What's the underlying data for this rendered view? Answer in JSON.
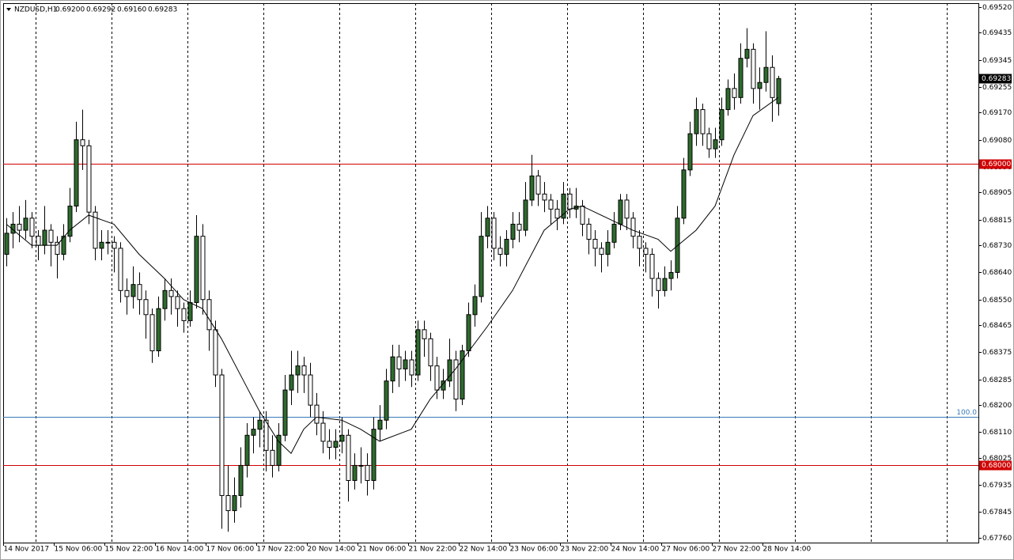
{
  "chart_data": {
    "type": "candlestick",
    "symbol": "NZDUSD,H1",
    "ohlc_header": [
      "0.69200",
      "0.69292",
      "0.69160",
      "0.69283"
    ],
    "bull_color": "#2e6b2e",
    "bear_color": "#ffffff",
    "ma_color": "#000000",
    "ylim": [
      0.67744,
      0.69533
    ],
    "yticks": [
      {
        "value": 0.6952,
        "label": "0.69520"
      },
      {
        "value": 0.69435,
        "label": "0.69435"
      },
      {
        "value": 0.69345,
        "label": "0.69345"
      },
      {
        "value": 0.69255,
        "label": "0.69255"
      },
      {
        "value": 0.6917,
        "label": "0.69170"
      },
      {
        "value": 0.6908,
        "label": "0.69080"
      },
      {
        "value": 0.6899,
        "label": "0.68990"
      },
      {
        "value": 0.68905,
        "label": "0.68905"
      },
      {
        "value": 0.68815,
        "label": "0.68815"
      },
      {
        "value": 0.6873,
        "label": "0.68730"
      },
      {
        "value": 0.6864,
        "label": "0.68640"
      },
      {
        "value": 0.6855,
        "label": "0.68550"
      },
      {
        "value": 0.68465,
        "label": "0.68465"
      },
      {
        "value": 0.68375,
        "label": "0.68375"
      },
      {
        "value": 0.68285,
        "label": "0.68285"
      },
      {
        "value": 0.682,
        "label": "0.68200"
      },
      {
        "value": 0.6811,
        "label": "0.68110"
      },
      {
        "value": 0.68025,
        "label": "0.68025"
      },
      {
        "value": 0.67935,
        "label": "0.67935"
      },
      {
        "value": 0.67845,
        "label": "0.67845"
      },
      {
        "value": 0.6776,
        "label": "0.67760"
      }
    ],
    "xticks": [
      {
        "value": -0.5,
        "label": "14 Nov 2017"
      },
      {
        "value": 7.5,
        "label": "15 Nov 06:00"
      },
      {
        "value": 15.5,
        "label": "15 Nov 22:00"
      },
      {
        "value": 23.5,
        "label": "16 Nov 14:00"
      },
      {
        "value": 31.5,
        "label": "17 Nov 06:00"
      },
      {
        "value": 39.5,
        "label": "17 Nov 22:00"
      },
      {
        "value": 47.5,
        "label": "20 Nov 14:00"
      },
      {
        "value": 55.5,
        "label": "21 Nov 06:00"
      },
      {
        "value": 63.5,
        "label": "21 Nov 22:00"
      },
      {
        "value": 71.5,
        "label": "22 Nov 14:00"
      },
      {
        "value": 79.5,
        "label": "23 Nov 06:00"
      },
      {
        "value": 87.5,
        "label": "23 Nov 22:00"
      },
      {
        "value": 95.5,
        "label": "24 Nov 14:00"
      },
      {
        "value": 103.5,
        "label": "27 Nov 06:00"
      },
      {
        "value": 111.5,
        "label": "27 Nov 22:00"
      },
      {
        "value": 119.5,
        "label": "28 Nov 14:00"
      }
    ],
    "levels": [
      {
        "value": 0.69,
        "label": "0.69000",
        "color": "#d00000"
      },
      {
        "value": 0.68,
        "label": "0.68000",
        "color": "#d00000"
      },
      {
        "value": 0.6816,
        "label": "100.0",
        "color": "#3a7ab8"
      }
    ],
    "last_price": {
      "value": 0.69283,
      "label": "0.69283"
    },
    "candles": [
      [
        0.687,
        0.6882,
        0.6866,
        0.6877
      ],
      [
        0.6877,
        0.6884,
        0.6872,
        0.688
      ],
      [
        0.688,
        0.6886,
        0.6874,
        0.6878
      ],
      [
        0.6878,
        0.6888,
        0.6875,
        0.6882
      ],
      [
        0.6882,
        0.6884,
        0.6872,
        0.6876
      ],
      [
        0.6876,
        0.6878,
        0.6868,
        0.6873
      ],
      [
        0.6873,
        0.6886,
        0.687,
        0.6878
      ],
      [
        0.6878,
        0.688,
        0.6866,
        0.6874
      ],
      [
        0.6874,
        0.6876,
        0.6862,
        0.687
      ],
      [
        0.687,
        0.688,
        0.6868,
        0.6876
      ],
      [
        0.6876,
        0.6892,
        0.6874,
        0.6886
      ],
      [
        0.6886,
        0.6914,
        0.6884,
        0.6908
      ],
      [
        0.6908,
        0.6918,
        0.6898,
        0.6906
      ],
      [
        0.6906,
        0.6908,
        0.688,
        0.6884
      ],
      [
        0.6884,
        0.6886,
        0.6868,
        0.6872
      ],
      [
        0.6872,
        0.6878,
        0.6868,
        0.6874
      ],
      [
        0.6874,
        0.6878,
        0.687,
        0.6874
      ],
      [
        0.6874,
        0.6876,
        0.6864,
        0.6872
      ],
      [
        0.6872,
        0.6874,
        0.6854,
        0.6858
      ],
      [
        0.6858,
        0.6862,
        0.685,
        0.6856
      ],
      [
        0.6856,
        0.6866,
        0.6852,
        0.686
      ],
      [
        0.686,
        0.6864,
        0.685,
        0.6855
      ],
      [
        0.6855,
        0.6858,
        0.6842,
        0.685
      ],
      [
        0.685,
        0.6852,
        0.6834,
        0.6838
      ],
      [
        0.6838,
        0.6856,
        0.6836,
        0.6852
      ],
      [
        0.6852,
        0.6862,
        0.6848,
        0.6858
      ],
      [
        0.6858,
        0.6862,
        0.685,
        0.6856
      ],
      [
        0.6856,
        0.6858,
        0.6846,
        0.6852
      ],
      [
        0.6852,
        0.6854,
        0.6844,
        0.6848
      ],
      [
        0.6848,
        0.6858,
        0.6846,
        0.6854
      ],
      [
        0.6854,
        0.6883,
        0.6852,
        0.6876
      ],
      [
        0.6876,
        0.688,
        0.685,
        0.6855
      ],
      [
        0.6855,
        0.6858,
        0.6838,
        0.6845
      ],
      [
        0.6845,
        0.6848,
        0.6826,
        0.683
      ],
      [
        0.683,
        0.6832,
        0.6779,
        0.679
      ],
      [
        0.679,
        0.68,
        0.6778,
        0.6785
      ],
      [
        0.6785,
        0.6796,
        0.6781,
        0.679
      ],
      [
        0.679,
        0.6806,
        0.6786,
        0.68
      ],
      [
        0.68,
        0.6814,
        0.6796,
        0.681
      ],
      [
        0.681,
        0.6816,
        0.6804,
        0.6812
      ],
      [
        0.6812,
        0.6818,
        0.6806,
        0.6815
      ],
      [
        0.6815,
        0.6818,
        0.6798,
        0.6805
      ],
      [
        0.6805,
        0.681,
        0.6796,
        0.68
      ],
      [
        0.68,
        0.6814,
        0.6798,
        0.681
      ],
      [
        0.681,
        0.683,
        0.6808,
        0.6825
      ],
      [
        0.6825,
        0.6838,
        0.682,
        0.683
      ],
      [
        0.683,
        0.6838,
        0.6824,
        0.6833
      ],
      [
        0.6833,
        0.6836,
        0.6824,
        0.683
      ],
      [
        0.683,
        0.6834,
        0.6816,
        0.682
      ],
      [
        0.682,
        0.6824,
        0.681,
        0.6814
      ],
      [
        0.6814,
        0.6818,
        0.6804,
        0.6808
      ],
      [
        0.6808,
        0.6812,
        0.6802,
        0.6806
      ],
      [
        0.6806,
        0.6812,
        0.6802,
        0.6808
      ],
      [
        0.6808,
        0.6816,
        0.6804,
        0.681
      ],
      [
        0.681,
        0.6812,
        0.6788,
        0.6795
      ],
      [
        0.6795,
        0.6804,
        0.6792,
        0.68
      ],
      [
        0.68,
        0.6806,
        0.6794,
        0.68
      ],
      [
        0.68,
        0.6804,
        0.679,
        0.6795
      ],
      [
        0.6795,
        0.6816,
        0.6792,
        0.6812
      ],
      [
        0.6812,
        0.682,
        0.6808,
        0.6815
      ],
      [
        0.6815,
        0.6832,
        0.6812,
        0.6828
      ],
      [
        0.6828,
        0.684,
        0.6824,
        0.6836
      ],
      [
        0.6836,
        0.684,
        0.6826,
        0.6832
      ],
      [
        0.6832,
        0.6838,
        0.6828,
        0.6835
      ],
      [
        0.6835,
        0.6838,
        0.6826,
        0.683
      ],
      [
        0.683,
        0.6848,
        0.6828,
        0.6845
      ],
      [
        0.6845,
        0.6848,
        0.6836,
        0.6842
      ],
      [
        0.6842,
        0.6844,
        0.6828,
        0.6833
      ],
      [
        0.6833,
        0.6836,
        0.6822,
        0.6825
      ],
      [
        0.6825,
        0.6832,
        0.6822,
        0.6828
      ],
      [
        0.6828,
        0.6842,
        0.6826,
        0.6835
      ],
      [
        0.6835,
        0.6838,
        0.6818,
        0.6822
      ],
      [
        0.6822,
        0.684,
        0.682,
        0.6838
      ],
      [
        0.6838,
        0.6854,
        0.6836,
        0.685
      ],
      [
        0.685,
        0.686,
        0.6846,
        0.6856
      ],
      [
        0.6856,
        0.6884,
        0.6854,
        0.6876
      ],
      [
        0.6876,
        0.6886,
        0.6872,
        0.6882
      ],
      [
        0.6882,
        0.6884,
        0.6868,
        0.6872
      ],
      [
        0.6872,
        0.6876,
        0.6866,
        0.687
      ],
      [
        0.687,
        0.6878,
        0.6866,
        0.6875
      ],
      [
        0.6875,
        0.6884,
        0.6872,
        0.688
      ],
      [
        0.688,
        0.6884,
        0.6874,
        0.6878
      ],
      [
        0.6878,
        0.6894,
        0.6876,
        0.6888
      ],
      [
        0.6888,
        0.6903,
        0.6886,
        0.6896
      ],
      [
        0.6896,
        0.6898,
        0.6886,
        0.689
      ],
      [
        0.689,
        0.6894,
        0.6884,
        0.6888
      ],
      [
        0.6888,
        0.689,
        0.688,
        0.6885
      ],
      [
        0.6885,
        0.6888,
        0.6878,
        0.6882
      ],
      [
        0.6882,
        0.6894,
        0.688,
        0.689
      ],
      [
        0.689,
        0.6892,
        0.6882,
        0.6885
      ],
      [
        0.6885,
        0.6892,
        0.6882,
        0.6886
      ],
      [
        0.6886,
        0.6888,
        0.6876,
        0.688
      ],
      [
        0.688,
        0.6882,
        0.687,
        0.6875
      ],
      [
        0.6875,
        0.6878,
        0.6866,
        0.6872
      ],
      [
        0.6872,
        0.6874,
        0.6864,
        0.687
      ],
      [
        0.687,
        0.6878,
        0.6866,
        0.6874
      ],
      [
        0.6874,
        0.6884,
        0.6872,
        0.688
      ],
      [
        0.688,
        0.689,
        0.6878,
        0.6888
      ],
      [
        0.6888,
        0.689,
        0.6878,
        0.6882
      ],
      [
        0.6882,
        0.6884,
        0.6872,
        0.6876
      ],
      [
        0.6876,
        0.6878,
        0.6866,
        0.6872
      ],
      [
        0.6872,
        0.6874,
        0.6864,
        0.687
      ],
      [
        0.687,
        0.6872,
        0.6856,
        0.6862
      ],
      [
        0.6862,
        0.6864,
        0.6852,
        0.6858
      ],
      [
        0.6858,
        0.6866,
        0.6856,
        0.6862
      ],
      [
        0.6862,
        0.6868,
        0.6858,
        0.6864
      ],
      [
        0.6864,
        0.6886,
        0.6862,
        0.6882
      ],
      [
        0.6882,
        0.6902,
        0.688,
        0.6898
      ],
      [
        0.6898,
        0.6914,
        0.6896,
        0.691
      ],
      [
        0.691,
        0.6922,
        0.6906,
        0.6918
      ],
      [
        0.6918,
        0.692,
        0.6906,
        0.691
      ],
      [
        0.691,
        0.6912,
        0.6902,
        0.6905
      ],
      [
        0.6905,
        0.6912,
        0.6902,
        0.6908
      ],
      [
        0.6908,
        0.6922,
        0.6906,
        0.6918
      ],
      [
        0.6918,
        0.6928,
        0.6916,
        0.6925
      ],
      [
        0.6925,
        0.693,
        0.6918,
        0.6922
      ],
      [
        0.6922,
        0.694,
        0.692,
        0.6935
      ],
      [
        0.6935,
        0.6945,
        0.6932,
        0.6938
      ],
      [
        0.6938,
        0.694,
        0.692,
        0.6925
      ],
      [
        0.6925,
        0.6932,
        0.6918,
        0.6927
      ],
      [
        0.6927,
        0.6944,
        0.6924,
        0.6932
      ],
      [
        0.6932,
        0.6936,
        0.6914,
        0.6922
      ],
      [
        0.692,
        0.69292,
        0.6916,
        0.69283
      ]
    ],
    "ma": {
      "x": [
        0,
        4,
        8,
        10,
        13,
        17,
        21,
        25,
        28,
        31,
        34,
        38,
        40,
        43,
        45,
        47,
        49,
        53,
        56,
        59,
        64,
        67,
        71,
        76,
        80,
        85,
        89,
        91,
        95,
        99,
        103,
        105,
        109,
        112,
        115,
        118,
        122
      ],
      "values": [
        0.688,
        0.6873,
        0.6873,
        0.6878,
        0.6883,
        0.688,
        0.687,
        0.6862,
        0.6855,
        0.6852,
        0.6842,
        0.6826,
        0.6818,
        0.6808,
        0.6804,
        0.6812,
        0.6816,
        0.6815,
        0.6812,
        0.6808,
        0.6812,
        0.6822,
        0.6832,
        0.6846,
        0.6858,
        0.6878,
        0.6885,
        0.6886,
        0.6882,
        0.6878,
        0.6875,
        0.6871,
        0.6878,
        0.6886,
        0.6903,
        0.6916,
        0.6922
      ]
    }
  }
}
